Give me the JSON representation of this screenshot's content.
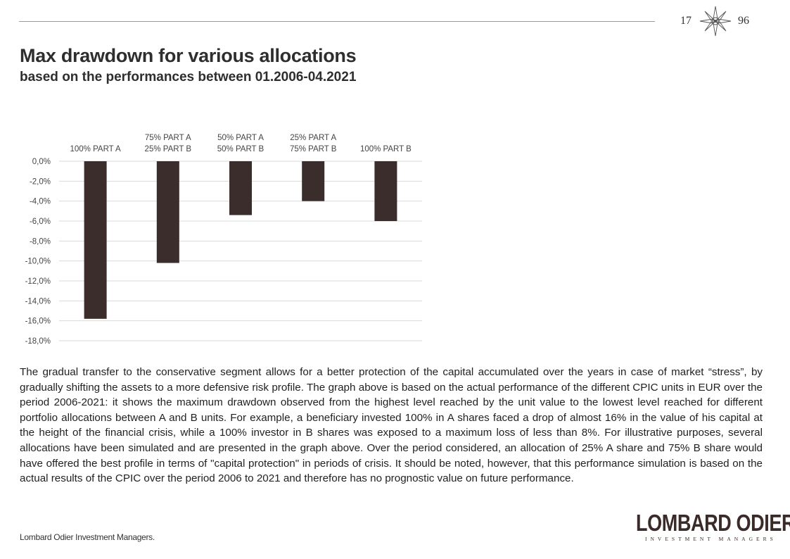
{
  "header": {
    "year_left": "17",
    "year_right": "96"
  },
  "title": "Max drawdown for various allocations",
  "subtitle": "based on the performances between 01.2006-04.2021",
  "chart_data": {
    "type": "bar",
    "categories": [
      [
        "100% PART A"
      ],
      [
        "75% PART A",
        "25% PART B"
      ],
      [
        "50% PART A",
        "50% PART B"
      ],
      [
        "25% PART A",
        "75% PART B"
      ],
      [
        "100% PART B"
      ]
    ],
    "values": [
      -15.8,
      -10.2,
      -5.4,
      -4.0,
      -6.0
    ],
    "ylim": [
      -18,
      0
    ],
    "yticks": [
      "0,0%",
      "-2,0%",
      "-4,0%",
      "-6,0%",
      "-8,0%",
      "-10,0%",
      "-12,0%",
      "-14,0%",
      "-16,0%",
      "-18,0%"
    ],
    "title": "",
    "xlabel": "",
    "ylabel": "",
    "grid": true,
    "bar_color": "#3a2d2b"
  },
  "body_text": "The gradual transfer to the conservative segment allows for a better protection of the capital accumulated over the years in case of market “stress”, by gradually shifting the assets to a more defensive risk profile. The graph above is based on the actual performance of the different CPIC units in EUR over the period 2006-2021: it shows the maximum drawdown observed from the highest level reached by the unit value to the lowest level reached for different portfolio allocations between A and B units. For example, a beneficiary invested 100% in A shares faced a drop of almost 16% in the value of his capital at the height of the financial crisis, while a 100% investor in B shares was exposed to a maximum loss of less than 8%. For illustrative purposes, several allocations have been simulated and are presented in the graph above. Over the period considered, an allocation of 25% A share and 75% B share would have offered the best profile in terms of \"capital protection\" in periods of crisis. It should be noted, however, that this performance simulation is based on the actual results of the CPIC over the period 2006 to 2021 and therefore has no prognostic value on future performance.",
  "footer": "Lombard Odier Investment Managers.",
  "logo": {
    "main": "LOMBARD ODIER",
    "sub": "INVESTMENT MANAGERS"
  }
}
